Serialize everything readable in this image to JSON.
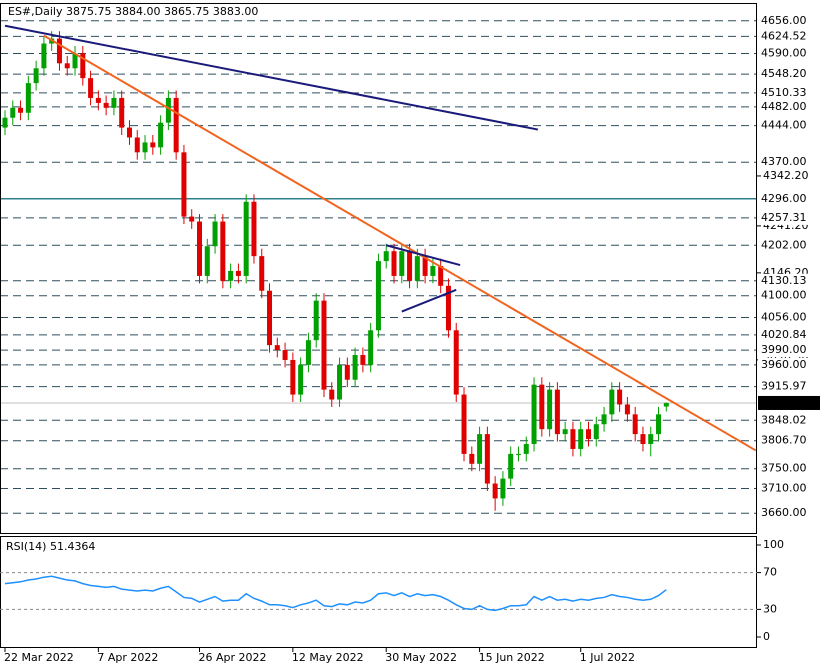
{
  "chart_data": {
    "type": "candlestick",
    "title": "ES#,Daily  3875.75 3884.00 3865.75 3883.00",
    "ylim": [
      3620,
      4690
    ],
    "categories": [
      "22 Mar 2022",
      null,
      null,
      null,
      null,
      null,
      null,
      null,
      null,
      null,
      null,
      null,
      "7 Apr 2022",
      null,
      null,
      null,
      null,
      null,
      null,
      null,
      null,
      null,
      null,
      null,
      null,
      "26 Apr 2022",
      null,
      null,
      null,
      null,
      null,
      null,
      null,
      null,
      null,
      null,
      null,
      "12 May 2022",
      null,
      null,
      null,
      null,
      null,
      null,
      null,
      null,
      null,
      null,
      null,
      "30 May 2022",
      null,
      null,
      null,
      null,
      null,
      null,
      null,
      null,
      null,
      null,
      null,
      "15 Jun 2022",
      null,
      null,
      null,
      null,
      null,
      null,
      null,
      null,
      null,
      null,
      null,
      null,
      "1 Jul 2022",
      null,
      null,
      null,
      null,
      null,
      null,
      null,
      null,
      null,
      null,
      null
    ],
    "candles": [
      [
        4440,
        4475,
        4425,
        4460
      ],
      [
        4460,
        4495,
        4445,
        4480
      ],
      [
        4480,
        4495,
        4455,
        4470
      ],
      [
        4470,
        4545,
        4455,
        4530
      ],
      [
        4530,
        4575,
        4515,
        4560
      ],
      [
        4560,
        4625,
        4545,
        4610
      ],
      [
        4610,
        4635,
        4595,
        4620
      ],
      [
        4620,
        4635,
        4555,
        4570
      ],
      [
        4570,
        4585,
        4545,
        4560
      ],
      [
        4560,
        4605,
        4545,
        4590
      ],
      [
        4590,
        4605,
        4525,
        4540
      ],
      [
        4540,
        4555,
        4485,
        4500
      ],
      [
        4500,
        4515,
        4475,
        4490
      ],
      [
        4490,
        4505,
        4465,
        4480
      ],
      [
        4480,
        4515,
        4465,
        4500
      ],
      [
        4500,
        4515,
        4425,
        4440
      ],
      [
        4440,
        4455,
        4405,
        4420
      ],
      [
        4420,
        4435,
        4375,
        4390
      ],
      [
        4390,
        4425,
        4375,
        4410
      ],
      [
        4410,
        4425,
        4385,
        4400
      ],
      [
        4400,
        4465,
        4385,
        4450
      ],
      [
        4450,
        4515,
        4435,
        4500
      ],
      [
        4500,
        4515,
        4375,
        4390
      ],
      [
        4390,
        4405,
        4245,
        4260
      ],
      [
        4260,
        4275,
        4235,
        4250
      ],
      [
        4250,
        4265,
        4125,
        4140
      ],
      [
        4140,
        4215,
        4125,
        4200
      ],
      [
        4200,
        4265,
        4185,
        4250
      ],
      [
        4250,
        4265,
        4115,
        4130
      ],
      [
        4130,
        4165,
        4115,
        4150
      ],
      [
        4150,
        4165,
        4125,
        4140
      ],
      [
        4140,
        4305,
        4125,
        4290
      ],
      [
        4290,
        4305,
        4165,
        4180
      ],
      [
        4180,
        4195,
        4095,
        4110
      ],
      [
        4110,
        4125,
        3985,
        4000
      ],
      [
        4000,
        4015,
        3975,
        3990
      ],
      [
        3990,
        4005,
        3955,
        3970
      ],
      [
        3970,
        3985,
        3885,
        3900
      ],
      [
        3900,
        3975,
        3885,
        3960
      ],
      [
        3960,
        4025,
        3945,
        4010
      ],
      [
        4010,
        4105,
        3995,
        4090
      ],
      [
        4090,
        4105,
        3895,
        3910
      ],
      [
        3910,
        3925,
        3875,
        3890
      ],
      [
        3890,
        3975,
        3875,
        3960
      ],
      [
        3960,
        3975,
        3915,
        3930
      ],
      [
        3930,
        3995,
        3915,
        3980
      ],
      [
        3980,
        3995,
        3945,
        3960
      ],
      [
        3960,
        4045,
        3945,
        4030
      ],
      [
        4030,
        4185,
        4015,
        4170
      ],
      [
        4170,
        4205,
        4155,
        4190
      ],
      [
        4190,
        4205,
        4125,
        4140
      ],
      [
        4140,
        4205,
        4125,
        4190
      ],
      [
        4190,
        4205,
        4115,
        4130
      ],
      [
        4130,
        4195,
        4115,
        4180
      ],
      [
        4180,
        4195,
        4125,
        4140
      ],
      [
        4140,
        4175,
        4125,
        4160
      ],
      [
        4160,
        4175,
        4105,
        4120
      ],
      [
        4120,
        4135,
        4015,
        4030
      ],
      [
        4030,
        4045,
        3885,
        3900
      ],
      [
        3900,
        3915,
        3765,
        3780
      ],
      [
        3780,
        3795,
        3745,
        3760
      ],
      [
        3760,
        3835,
        3745,
        3820
      ],
      [
        3820,
        3835,
        3705,
        3720
      ],
      [
        3720,
        3735,
        3665,
        3690
      ],
      [
        3690,
        3745,
        3675,
        3730
      ],
      [
        3730,
        3795,
        3715,
        3780
      ],
      [
        3780,
        3795,
        3765,
        3780
      ],
      [
        3780,
        3815,
        3765,
        3800
      ],
      [
        3800,
        3935,
        3785,
        3920
      ],
      [
        3920,
        3935,
        3815,
        3830
      ],
      [
        3830,
        3925,
        3815,
        3910
      ],
      [
        3910,
        3925,
        3805,
        3820
      ],
      [
        3820,
        3845,
        3805,
        3830
      ],
      [
        3830,
        3845,
        3775,
        3790
      ],
      [
        3790,
        3845,
        3775,
        3830
      ],
      [
        3830,
        3845,
        3795,
        3810
      ],
      [
        3810,
        3855,
        3795,
        3840
      ],
      [
        3840,
        3875,
        3825,
        3860
      ],
      [
        3860,
        3925,
        3845,
        3910
      ],
      [
        3910,
        3925,
        3865,
        3880
      ],
      [
        3880,
        3895,
        3845,
        3860
      ],
      [
        3860,
        3875,
        3805,
        3820
      ],
      [
        3820,
        3835,
        3785,
        3800
      ],
      [
        3800,
        3835,
        3775,
        3820
      ],
      [
        3820,
        3875,
        3805,
        3860
      ],
      [
        3875.75,
        3884,
        3865.75,
        3883
      ]
    ],
    "levels": [
      {
        "value": 4656,
        "label": "4656.00"
      },
      {
        "value": 4624.52,
        "label": "4624.52"
      },
      {
        "value": 4590,
        "label": "4590.00"
      },
      {
        "value": 4548.2,
        "label": "4548.20"
      },
      {
        "value": 4510.33,
        "label": "4510.33"
      },
      {
        "value": 4482,
        "label": "4482.00"
      },
      {
        "value": 4444,
        "label": "4444.00"
      },
      {
        "value": 4370,
        "label": "4370.00"
      },
      {
        "value": 4257.31,
        "label": "4257.31"
      },
      {
        "value": 4202,
        "label": "4202.00"
      },
      {
        "value": 4130.13,
        "label": "4130.13"
      },
      {
        "value": 4100,
        "label": "4100.00"
      },
      {
        "value": 4056,
        "label": "4056.00"
      },
      {
        "value": 4020.84,
        "label": "4020.84"
      },
      {
        "value": 3990,
        "label": "3990.00"
      },
      {
        "value": 3960,
        "label": "3960.00"
      },
      {
        "value": 3915.97,
        "label": "3915.97"
      },
      {
        "value": 3848.02,
        "label": "3848.02"
      },
      {
        "value": 3806.7,
        "label": "3806.70"
      },
      {
        "value": 3750,
        "label": "3750.00"
      },
      {
        "value": 3710,
        "label": "3710.00"
      },
      {
        "value": 3660,
        "label": "3660.00"
      }
    ],
    "solid_level": {
      "value": 4296,
      "label": "4296.00",
      "color": "#2f7f8f"
    },
    "current_price": {
      "value": 3883,
      "label": "3883.00"
    },
    "yticks": [
      {
        "value": 4342.2,
        "label": "4342.20"
      },
      {
        "value": 4241.2,
        "label": "4241.20"
      },
      {
        "value": 4146.2,
        "label": "4146.20"
      },
      {
        "value": 3970.2,
        "label": "3970.20"
      }
    ],
    "trendlines": [
      {
        "color": "#1a1a7a",
        "points": [
          [
            0,
            4646
          ],
          [
            68.5,
            4436
          ]
        ]
      },
      {
        "color": "#f0641e",
        "points": [
          [
            5,
            4626
          ],
          [
            96.5,
            3787
          ]
        ]
      },
      {
        "color": "#1a1a7a",
        "points": [
          [
            49,
            4202
          ],
          [
            58.5,
            4162
          ]
        ]
      },
      {
        "color": "#1a1a7a",
        "points": [
          [
            51,
            4068
          ],
          [
            58,
            4112
          ]
        ]
      }
    ],
    "up_color": "#00a000",
    "down_color": "#e00000",
    "rsi": {
      "label": "RSI(14) 51.4364",
      "color": "#1e90ff",
      "ylim": [
        0,
        100
      ],
      "yticks": [
        100,
        70,
        30,
        0
      ],
      "levels": [
        70,
        30
      ],
      "values": [
        58,
        59,
        60,
        62,
        63,
        65,
        66,
        64,
        62,
        61,
        58,
        56,
        55,
        54,
        55,
        52,
        51,
        50,
        51,
        50,
        53,
        55,
        49,
        43,
        42,
        38,
        41,
        44,
        39,
        40,
        40,
        47,
        42,
        39,
        35,
        35,
        34,
        32,
        35,
        37,
        40,
        34,
        33,
        36,
        35,
        38,
        37,
        40,
        47,
        48,
        45,
        48,
        44,
        47,
        45,
        46,
        44,
        40,
        35,
        31,
        30,
        34,
        30,
        29,
        31,
        34,
        34,
        35,
        44,
        40,
        44,
        40,
        41,
        39,
        41,
        40,
        42,
        43,
        46,
        44,
        43,
        41,
        40,
        41,
        45,
        51.4364
      ]
    }
  }
}
